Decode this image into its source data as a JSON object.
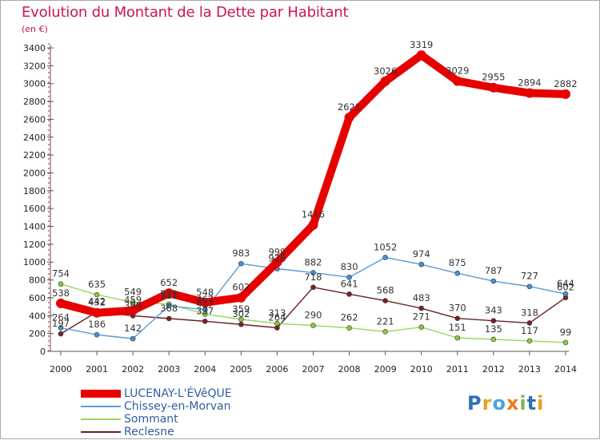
{
  "chart_data": {
    "type": "line",
    "title": "Evolution du Montant de la Dette par Habitant",
    "subtitle": "(en €)",
    "x": [
      "2000",
      "2001",
      "2002",
      "2003",
      "2004",
      "2005",
      "2006",
      "2007",
      "2008",
      "2009",
      "2010",
      "2011",
      "2012",
      "2013",
      "2014"
    ],
    "ylim": [
      0,
      3400
    ],
    "yticks": [
      0,
      200,
      400,
      600,
      800,
      1000,
      1200,
      1400,
      1600,
      1800,
      2000,
      2200,
      2400,
      2600,
      2800,
      3000,
      3200,
      3400
    ],
    "grid": false,
    "legend_position": "bottom-left",
    "series": [
      {
        "name": "LUCENAY-L'ÉVêQUE",
        "color": "#e60000",
        "values": [
          538,
          432,
          459,
          652,
          548,
          602,
          999,
          1416,
          2621,
          3026,
          3319,
          3029,
          2955,
          2894,
          2882
        ]
      },
      {
        "name": "Chissey-en-Morvan",
        "color": "#5b9bd5",
        "values": [
          264,
          186,
          142,
          511,
          467,
          983,
          926,
          882,
          830,
          1052,
          974,
          875,
          787,
          727,
          644
        ]
      },
      {
        "name": "Sommant",
        "color": "#9bd65b",
        "values": [
          754,
          635,
          549,
          529,
          417,
          359,
          313,
          290,
          262,
          221,
          271,
          151,
          135,
          117,
          99
        ]
      },
      {
        "name": "Reclesne",
        "color": "#6b1f23",
        "values": [
          197,
          442,
          399,
          368,
          337,
          302,
          264,
          718,
          641,
          568,
          483,
          370,
          343,
          318,
          602
        ]
      }
    ]
  },
  "logo": {
    "text": "Proxiti"
  }
}
